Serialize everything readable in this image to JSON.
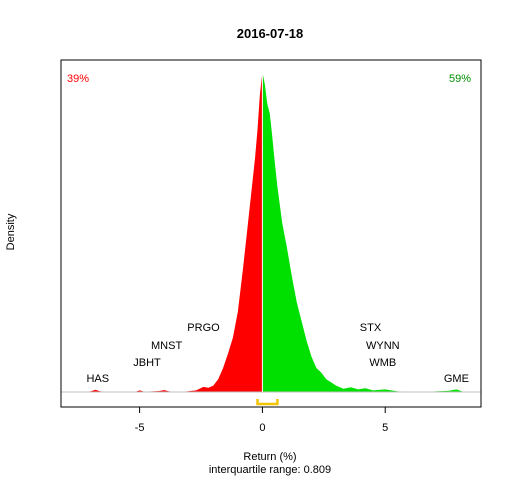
{
  "chart_data": {
    "type": "area",
    "title": "2016-07-18",
    "xlabel": "Return (%)",
    "ylabel": "Density",
    "subtitle": "interquartile range: 0.809",
    "xlim": [
      -8.2,
      8.9
    ],
    "ylim": [
      0,
      1.0
    ],
    "x_ticks": [
      -5,
      0,
      5
    ],
    "x_tick_labels": [
      "-5",
      "0",
      "5"
    ],
    "negative_pct_label": "39%",
    "positive_pct_label": "59%",
    "colors": {
      "negative": "#ff0000",
      "positive": "#00e000",
      "iqr": "#f5c400",
      "negative_label": "#ff0000",
      "positive_label": "#008f00"
    },
    "iqr": [
      -0.2,
      0.609
    ],
    "density": [
      {
        "x": -7.5,
        "y": 0.0
      },
      {
        "x": -7.0,
        "y": 0.002
      },
      {
        "x": -6.8,
        "y": 0.007
      },
      {
        "x": -6.6,
        "y": 0.002
      },
      {
        "x": -6.0,
        "y": 0.0
      },
      {
        "x": -5.2,
        "y": 0.0
      },
      {
        "x": -5.0,
        "y": 0.005
      },
      {
        "x": -4.8,
        "y": 0.001
      },
      {
        "x": -4.2,
        "y": 0.003
      },
      {
        "x": -4.0,
        "y": 0.006
      },
      {
        "x": -3.8,
        "y": 0.002
      },
      {
        "x": -3.3,
        "y": 0.0
      },
      {
        "x": -2.7,
        "y": 0.005
      },
      {
        "x": -2.4,
        "y": 0.016
      },
      {
        "x": -2.2,
        "y": 0.013
      },
      {
        "x": -2.0,
        "y": 0.02
      },
      {
        "x": -1.8,
        "y": 0.04
      },
      {
        "x": -1.6,
        "y": 0.075
      },
      {
        "x": -1.4,
        "y": 0.12
      },
      {
        "x": -1.2,
        "y": 0.17
      },
      {
        "x": -1.0,
        "y": 0.25
      },
      {
        "x": -0.8,
        "y": 0.38
      },
      {
        "x": -0.6,
        "y": 0.52
      },
      {
        "x": -0.4,
        "y": 0.66
      },
      {
        "x": -0.3,
        "y": 0.73
      },
      {
        "x": -0.2,
        "y": 0.82
      },
      {
        "x": -0.1,
        "y": 0.93
      },
      {
        "x": 0.0,
        "y": 1.0
      },
      {
        "x": 0.1,
        "y": 0.96
      },
      {
        "x": 0.2,
        "y": 0.9
      },
      {
        "x": 0.3,
        "y": 0.87
      },
      {
        "x": 0.4,
        "y": 0.8
      },
      {
        "x": 0.5,
        "y": 0.72
      },
      {
        "x": 0.6,
        "y": 0.65
      },
      {
        "x": 0.7,
        "y": 0.59
      },
      {
        "x": 0.8,
        "y": 0.53
      },
      {
        "x": 1.0,
        "y": 0.45
      },
      {
        "x": 1.2,
        "y": 0.36
      },
      {
        "x": 1.4,
        "y": 0.28
      },
      {
        "x": 1.6,
        "y": 0.22
      },
      {
        "x": 1.8,
        "y": 0.16
      },
      {
        "x": 2.0,
        "y": 0.11
      },
      {
        "x": 2.2,
        "y": 0.075
      },
      {
        "x": 2.4,
        "y": 0.06
      },
      {
        "x": 2.6,
        "y": 0.04
      },
      {
        "x": 2.8,
        "y": 0.03
      },
      {
        "x": 3.0,
        "y": 0.02
      },
      {
        "x": 3.3,
        "y": 0.01
      },
      {
        "x": 3.6,
        "y": 0.015
      },
      {
        "x": 3.9,
        "y": 0.008
      },
      {
        "x": 4.2,
        "y": 0.012
      },
      {
        "x": 4.5,
        "y": 0.005
      },
      {
        "x": 5.0,
        "y": 0.008
      },
      {
        "x": 5.5,
        "y": 0.002
      },
      {
        "x": 6.5,
        "y": 0.0
      },
      {
        "x": 7.6,
        "y": 0.004
      },
      {
        "x": 7.9,
        "y": 0.008
      },
      {
        "x": 8.2,
        "y": 0.0
      }
    ],
    "annotations": [
      {
        "text": "HAS",
        "x": -6.7,
        "row": 0
      },
      {
        "text": "JBHT",
        "x": -4.7,
        "row": 1
      },
      {
        "text": "MNST",
        "x": -3.9,
        "row": 2
      },
      {
        "text": "PRGO",
        "x": -2.4,
        "row": 3
      },
      {
        "text": "STX",
        "x": 4.4,
        "row": 3
      },
      {
        "text": "WYNN",
        "x": 4.9,
        "row": 2
      },
      {
        "text": "WMB",
        "x": 4.9,
        "row": 1
      },
      {
        "text": "GME",
        "x": 7.9,
        "row": 0
      }
    ]
  }
}
